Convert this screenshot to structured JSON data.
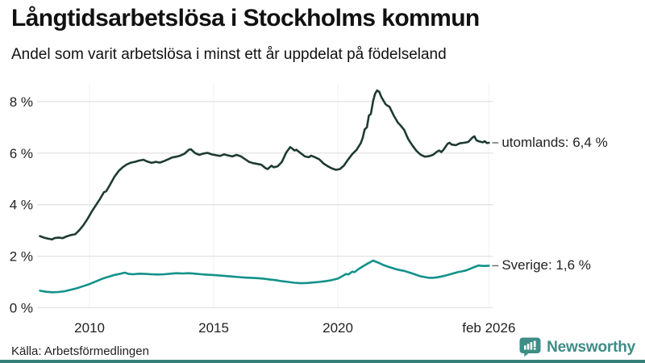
{
  "header": {
    "title": "Långtidsarbetslösa i Stockholms kommun",
    "subtitle": "Andel som varit arbetslösa i minst ett år uppdelat på födelseland"
  },
  "footer": {
    "source": "Källa: Arbetsförmedlingen",
    "brand": "Newsworthy"
  },
  "colors": {
    "utomlands_line": "#1e3b33",
    "sverige_line": "#12928a",
    "brand_teal": "#3e8d86",
    "grid": "#e2e2e2",
    "grid_vertical": "#f1f1f1",
    "text": "#111111",
    "tick_text": "#222222",
    "connector": "#666666",
    "bottom_bar": "#35817a"
  },
  "chart_data": {
    "type": "line",
    "title": "Långtidsarbetslösa i Stockholms kommun",
    "subtitle": "Andel som varit arbetslösa i minst ett år uppdelat på födelseland",
    "grid": true,
    "legend_position": "right-end-labels",
    "x_axis": {
      "range": [
        2008.0,
        2026.25
      ],
      "ticks": [
        {
          "value": 2010,
          "label": "2010"
        },
        {
          "value": 2015,
          "label": "2015"
        },
        {
          "value": 2020,
          "label": "2020"
        },
        {
          "value": 2026.083,
          "label": "feb 2026"
        }
      ]
    },
    "y_axis": {
      "range": [
        0,
        8.7
      ],
      "unit": "%",
      "ticks": [
        {
          "value": 0,
          "label": "0 %"
        },
        {
          "value": 2,
          "label": "2 %"
        },
        {
          "value": 4,
          "label": "4 %"
        },
        {
          "value": 6,
          "label": "6 %"
        },
        {
          "value": 8,
          "label": "8 %"
        }
      ]
    },
    "series": [
      {
        "name": "utomlands",
        "end_label": "utomlands: 6,4 %",
        "latest_value": "6,4 %",
        "color": "#1e3b33",
        "points": [
          [
            2008.0,
            2.78
          ],
          [
            2008.17,
            2.72
          ],
          [
            2008.33,
            2.68
          ],
          [
            2008.5,
            2.65
          ],
          [
            2008.58,
            2.7
          ],
          [
            2008.75,
            2.72
          ],
          [
            2008.92,
            2.7
          ],
          [
            2009.08,
            2.77
          ],
          [
            2009.25,
            2.82
          ],
          [
            2009.42,
            2.85
          ],
          [
            2009.58,
            3.0
          ],
          [
            2009.75,
            3.2
          ],
          [
            2009.92,
            3.45
          ],
          [
            2010.08,
            3.72
          ],
          [
            2010.25,
            3.97
          ],
          [
            2010.42,
            4.22
          ],
          [
            2010.58,
            4.48
          ],
          [
            2010.67,
            4.52
          ],
          [
            2010.83,
            4.78
          ],
          [
            2011.0,
            5.08
          ],
          [
            2011.17,
            5.3
          ],
          [
            2011.33,
            5.45
          ],
          [
            2011.5,
            5.56
          ],
          [
            2011.67,
            5.63
          ],
          [
            2011.83,
            5.66
          ],
          [
            2012.0,
            5.71
          ],
          [
            2012.17,
            5.74
          ],
          [
            2012.33,
            5.67
          ],
          [
            2012.5,
            5.62
          ],
          [
            2012.67,
            5.66
          ],
          [
            2012.83,
            5.63
          ],
          [
            2013.0,
            5.69
          ],
          [
            2013.17,
            5.76
          ],
          [
            2013.33,
            5.83
          ],
          [
            2013.5,
            5.86
          ],
          [
            2013.67,
            5.91
          ],
          [
            2013.83,
            5.98
          ],
          [
            2014.0,
            6.13
          ],
          [
            2014.08,
            6.15
          ],
          [
            2014.25,
            6.0
          ],
          [
            2014.42,
            5.93
          ],
          [
            2014.58,
            5.98
          ],
          [
            2014.75,
            6.01
          ],
          [
            2014.92,
            5.95
          ],
          [
            2015.08,
            5.92
          ],
          [
            2015.25,
            5.89
          ],
          [
            2015.42,
            5.95
          ],
          [
            2015.58,
            5.91
          ],
          [
            2015.75,
            5.87
          ],
          [
            2015.92,
            5.93
          ],
          [
            2016.08,
            5.88
          ],
          [
            2016.25,
            5.77
          ],
          [
            2016.42,
            5.66
          ],
          [
            2016.58,
            5.61
          ],
          [
            2016.75,
            5.58
          ],
          [
            2016.92,
            5.55
          ],
          [
            2017.08,
            5.42
          ],
          [
            2017.17,
            5.38
          ],
          [
            2017.33,
            5.51
          ],
          [
            2017.42,
            5.45
          ],
          [
            2017.58,
            5.49
          ],
          [
            2017.75,
            5.66
          ],
          [
            2017.92,
            6.02
          ],
          [
            2018.08,
            6.23
          ],
          [
            2018.17,
            6.17
          ],
          [
            2018.25,
            6.1
          ],
          [
            2018.33,
            6.13
          ],
          [
            2018.5,
            6.0
          ],
          [
            2018.67,
            5.87
          ],
          [
            2018.83,
            5.84
          ],
          [
            2018.92,
            5.9
          ],
          [
            2019.08,
            5.84
          ],
          [
            2019.25,
            5.76
          ],
          [
            2019.42,
            5.6
          ],
          [
            2019.58,
            5.5
          ],
          [
            2019.75,
            5.41
          ],
          [
            2019.92,
            5.35
          ],
          [
            2020.08,
            5.38
          ],
          [
            2020.25,
            5.52
          ],
          [
            2020.42,
            5.76
          ],
          [
            2020.58,
            5.96
          ],
          [
            2020.75,
            6.12
          ],
          [
            2020.92,
            6.38
          ],
          [
            2021.0,
            6.58
          ],
          [
            2021.08,
            6.92
          ],
          [
            2021.17,
            7.0
          ],
          [
            2021.25,
            7.45
          ],
          [
            2021.33,
            7.52
          ],
          [
            2021.42,
            8.02
          ],
          [
            2021.5,
            8.3
          ],
          [
            2021.58,
            8.43
          ],
          [
            2021.67,
            8.37
          ],
          [
            2021.75,
            8.18
          ],
          [
            2021.92,
            7.9
          ],
          [
            2022.0,
            7.84
          ],
          [
            2022.08,
            7.8
          ],
          [
            2022.25,
            7.46
          ],
          [
            2022.42,
            7.18
          ],
          [
            2022.5,
            7.1
          ],
          [
            2022.67,
            6.9
          ],
          [
            2022.83,
            6.55
          ],
          [
            2023.0,
            6.3
          ],
          [
            2023.17,
            6.08
          ],
          [
            2023.33,
            5.94
          ],
          [
            2023.5,
            5.86
          ],
          [
            2023.67,
            5.88
          ],
          [
            2023.83,
            5.93
          ],
          [
            2024.0,
            6.06
          ],
          [
            2024.08,
            6.1
          ],
          [
            2024.17,
            6.04
          ],
          [
            2024.25,
            6.12
          ],
          [
            2024.42,
            6.36
          ],
          [
            2024.5,
            6.4
          ],
          [
            2024.58,
            6.33
          ],
          [
            2024.75,
            6.31
          ],
          [
            2024.92,
            6.38
          ],
          [
            2025.08,
            6.4
          ],
          [
            2025.25,
            6.43
          ],
          [
            2025.42,
            6.6
          ],
          [
            2025.5,
            6.65
          ],
          [
            2025.58,
            6.5
          ],
          [
            2025.67,
            6.46
          ],
          [
            2025.83,
            6.42
          ],
          [
            2025.92,
            6.46
          ],
          [
            2026.0,
            6.39
          ],
          [
            2026.083,
            6.4
          ]
        ]
      },
      {
        "name": "Sverige",
        "end_label": "Sverige: 1,6 %",
        "latest_value": "1,6 %",
        "color": "#12928a",
        "points": [
          [
            2008.0,
            0.66
          ],
          [
            2008.25,
            0.62
          ],
          [
            2008.5,
            0.6
          ],
          [
            2008.75,
            0.61
          ],
          [
            2009.0,
            0.64
          ],
          [
            2009.25,
            0.7
          ],
          [
            2009.5,
            0.76
          ],
          [
            2009.75,
            0.84
          ],
          [
            2010.0,
            0.92
          ],
          [
            2010.25,
            1.02
          ],
          [
            2010.5,
            1.12
          ],
          [
            2010.75,
            1.2
          ],
          [
            2011.0,
            1.27
          ],
          [
            2011.25,
            1.32
          ],
          [
            2011.42,
            1.36
          ],
          [
            2011.58,
            1.31
          ],
          [
            2011.75,
            1.3
          ],
          [
            2012.0,
            1.32
          ],
          [
            2012.25,
            1.31
          ],
          [
            2012.5,
            1.3
          ],
          [
            2012.75,
            1.29
          ],
          [
            2013.0,
            1.3
          ],
          [
            2013.25,
            1.32
          ],
          [
            2013.5,
            1.34
          ],
          [
            2013.75,
            1.33
          ],
          [
            2014.0,
            1.34
          ],
          [
            2014.25,
            1.32
          ],
          [
            2014.5,
            1.3
          ],
          [
            2014.75,
            1.28
          ],
          [
            2015.0,
            1.27
          ],
          [
            2015.25,
            1.25
          ],
          [
            2015.5,
            1.23
          ],
          [
            2015.75,
            1.21
          ],
          [
            2016.0,
            1.19
          ],
          [
            2016.25,
            1.17
          ],
          [
            2016.5,
            1.16
          ],
          [
            2016.75,
            1.15
          ],
          [
            2017.0,
            1.13
          ],
          [
            2017.25,
            1.1
          ],
          [
            2017.5,
            1.07
          ],
          [
            2017.75,
            1.03
          ],
          [
            2018.0,
            1.0
          ],
          [
            2018.25,
            0.97
          ],
          [
            2018.5,
            0.95
          ],
          [
            2018.75,
            0.96
          ],
          [
            2019.0,
            0.98
          ],
          [
            2019.25,
            1.0
          ],
          [
            2019.5,
            1.03
          ],
          [
            2019.75,
            1.07
          ],
          [
            2020.0,
            1.13
          ],
          [
            2020.17,
            1.22
          ],
          [
            2020.33,
            1.31
          ],
          [
            2020.42,
            1.29
          ],
          [
            2020.58,
            1.4
          ],
          [
            2020.67,
            1.38
          ],
          [
            2020.83,
            1.5
          ],
          [
            2021.0,
            1.6
          ],
          [
            2021.17,
            1.7
          ],
          [
            2021.33,
            1.78
          ],
          [
            2021.42,
            1.83
          ],
          [
            2021.5,
            1.8
          ],
          [
            2021.67,
            1.73
          ],
          [
            2021.83,
            1.66
          ],
          [
            2022.0,
            1.6
          ],
          [
            2022.17,
            1.55
          ],
          [
            2022.33,
            1.5
          ],
          [
            2022.5,
            1.46
          ],
          [
            2022.67,
            1.43
          ],
          [
            2022.83,
            1.38
          ],
          [
            2023.0,
            1.33
          ],
          [
            2023.17,
            1.27
          ],
          [
            2023.33,
            1.22
          ],
          [
            2023.5,
            1.19
          ],
          [
            2023.67,
            1.16
          ],
          [
            2023.83,
            1.16
          ],
          [
            2024.0,
            1.18
          ],
          [
            2024.17,
            1.21
          ],
          [
            2024.33,
            1.25
          ],
          [
            2024.5,
            1.29
          ],
          [
            2024.67,
            1.34
          ],
          [
            2024.83,
            1.38
          ],
          [
            2025.0,
            1.41
          ],
          [
            2025.17,
            1.45
          ],
          [
            2025.33,
            1.51
          ],
          [
            2025.5,
            1.58
          ],
          [
            2025.67,
            1.64
          ],
          [
            2025.75,
            1.63
          ],
          [
            2025.92,
            1.62
          ],
          [
            2026.083,
            1.63
          ]
        ]
      }
    ]
  }
}
